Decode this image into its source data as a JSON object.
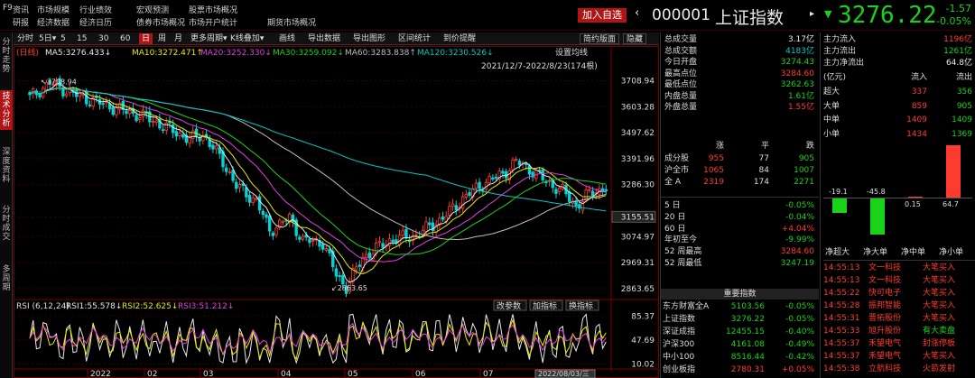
{
  "header": {
    "app": "F9",
    "menu_rows": [
      [
        "资讯",
        "市场规模",
        "行业绩效",
        "宏观预测",
        "股票市场概况"
      ],
      [
        "研报",
        "经济数据",
        "经济日历",
        "债券市场概况",
        "市场开户统计",
        "期货市场概况"
      ]
    ],
    "add_fav": "加入自选",
    "code": "000001",
    "name": "上证指数",
    "price": "3276.22",
    "change": "-1.57",
    "change_pct": "-0.05%"
  },
  "left_tabs": [
    "分时走势",
    "技术分析",
    "深度资料",
    "分时成交",
    "多周期"
  ],
  "toolbar": {
    "periods": [
      "分时",
      "5日",
      "5",
      "15",
      "30",
      "60",
      "日",
      "周",
      "月",
      "更多周期"
    ],
    "tools": [
      "K线叠加",
      "画线",
      "导出数据",
      "导出图形",
      "区间统计",
      "到价提醒",
      "简约版面",
      "隐藏"
    ]
  },
  "chart": {
    "title_prefix": "(日线)",
    "ma": [
      {
        "label": "MA5:3276.433↓",
        "color": "#e8e8e8"
      },
      {
        "label": "MA10:3272.471↑",
        "color": "#e8e800"
      },
      {
        "label": "MA20:3252.330↓",
        "color": "#e040e0"
      },
      {
        "label": "MA30:3259.092↓",
        "color": "#19d219"
      },
      {
        "label": "MA60:3283.838↑",
        "color": "#bdbdbd"
      },
      {
        "label": "MA120:3230.526↓",
        "color": "#00c8c8"
      }
    ],
    "settings_btn": "设置均线",
    "range_label": "2021/12/7-2022/8/23(174根)",
    "y_ticks": [
      "3708.94",
      "3603.28",
      "3497.62",
      "3391.96",
      "3286.30",
      "3155.51",
      "3074.97",
      "2969.31",
      "2863.65"
    ],
    "high_label": "3708.94",
    "low_label": "2863.65",
    "rsi_label": "RSI (6,12,24)",
    "rsi_values": [
      {
        "label": "RSI1:55.578↓",
        "color": "#e8e8e8"
      },
      {
        "label": "RSI2:52.625↓",
        "color": "#e8e800"
      },
      {
        "label": "RSI3:51.212↓",
        "color": "#e040e0"
      }
    ],
    "rsi_buttons": [
      "改参数",
      "加指标",
      "换指标"
    ],
    "rsi_ticks": [
      "85.37",
      "47.69",
      "10.02"
    ],
    "x_ticks": [
      "2022",
      "02",
      "03",
      "04",
      "05",
      "06",
      "07"
    ],
    "x_cursor": "2022/08/03/三"
  },
  "stats": [
    {
      "label": "总成交量",
      "value": "3.17亿",
      "color": "#e8e8e8"
    },
    {
      "label": "总成交额",
      "value": "4183亿",
      "color": "#00c8c8"
    },
    {
      "label": "今日开盘",
      "value": "3274.43",
      "color": "#19d219"
    },
    {
      "label": "最高点位",
      "value": "3284.60",
      "color": "#ff3b30"
    },
    {
      "label": "最低点位",
      "value": "3262.63",
      "color": "#19d219"
    },
    {
      "label": "内盘总量",
      "value": "1.61亿",
      "color": "#19d219"
    },
    {
      "label": "外盘总量",
      "value": "1.55亿",
      "color": "#ff3b30"
    }
  ],
  "breadth": {
    "headers": [
      "涨",
      "平",
      "跌"
    ],
    "rows": [
      {
        "label": "成分股",
        "up": "955",
        "flat": "77",
        "down": "905"
      },
      {
        "label": "沪全市",
        "up": "1065",
        "flat": "84",
        "down": "1007"
      },
      {
        "label": "全 A",
        "up": "2319",
        "flat": "174",
        "down": "2271"
      }
    ]
  },
  "period_change": [
    {
      "label": "5 日",
      "value": "-0.05%",
      "color": "#19d219"
    },
    {
      "label": "20 日",
      "value": "-0.04%",
      "color": "#19d219"
    },
    {
      "label": "60 日",
      "value": "+4.04%",
      "color": "#ff3b30"
    },
    {
      "label": "年初至今",
      "value": "-9.99%",
      "color": "#19d219"
    },
    {
      "label": "52 周最高",
      "value": "3284.60",
      "color": "#ff3b30"
    },
    {
      "label": "52 周最低",
      "value": "3247.19",
      "color": "#19d219"
    }
  ],
  "index_section": {
    "title": "重要指数",
    "rows": [
      {
        "name": "东方财富全A",
        "value": "5103.56",
        "pct": "-0.05%"
      },
      {
        "name": "上证指数",
        "value": "3276.22",
        "pct": "-0.05%"
      },
      {
        "name": "深证成指",
        "value": "12455.15",
        "pct": "-0.40%"
      },
      {
        "name": "沪深300",
        "value": "4161.08",
        "pct": "-0.49%"
      },
      {
        "name": "中小100",
        "value": "8516.44",
        "pct": "-0.42%"
      },
      {
        "name": "创业板指",
        "value": "2780.31",
        "pct": "+0.05%"
      }
    ]
  },
  "capital_flow": {
    "rows": [
      {
        "label": "主力流入",
        "value": "1196亿",
        "color": "#ff3b30"
      },
      {
        "label": "主力流出",
        "value": "1261亿",
        "color": "#19d219"
      },
      {
        "label": "主力净流出",
        "value": "64.8亿",
        "color": "#e8e8e8"
      }
    ],
    "table_headers": [
      "(亿元)",
      "流入",
      "流出"
    ],
    "table": [
      {
        "label": "超大",
        "in": "337",
        "out": "356"
      },
      {
        "label": "大单",
        "in": "859",
        "out": "905"
      },
      {
        "label": "中单",
        "in": "1409",
        "out": "1409"
      },
      {
        "label": "小单",
        "in": "1434",
        "out": "1369"
      }
    ],
    "bars": [
      {
        "label": "净超大",
        "value": -19.1,
        "text": "-19.1"
      },
      {
        "label": "净大单",
        "value": -45.8,
        "text": "-45.8"
      },
      {
        "label": "净中单",
        "value": 0.15,
        "text": "0.15"
      },
      {
        "label": "净小单",
        "value": 64.7,
        "text": "64.7"
      }
    ]
  },
  "trades": [
    {
      "time": "14:55:13",
      "name": "文一科技",
      "action": "大笔买入"
    },
    {
      "time": "14:55:13",
      "name": "文一科技",
      "action": "大笔买入"
    },
    {
      "time": "14:55:22",
      "name": "快可电子",
      "action": "大笔买入"
    },
    {
      "time": "14:55:28",
      "name": "振邦智能",
      "action": "大笔买入"
    },
    {
      "time": "14:55:31",
      "name": "晋拓股份",
      "action": "大笔买入"
    },
    {
      "time": "14:55:33",
      "name": "旭升股份",
      "action": "有大卖盘"
    },
    {
      "time": "14:55:37",
      "name": "禾望电气",
      "action": "封涨停板"
    },
    {
      "time": "14:55:37",
      "name": "禾望电气",
      "action": "大笔买入"
    },
    {
      "time": "14:55:38",
      "name": "立航科技",
      "action": "火箭发射"
    }
  ],
  "colors": {
    "up": "#ff3b30",
    "down": "#19d219",
    "accent": "#b01515"
  }
}
